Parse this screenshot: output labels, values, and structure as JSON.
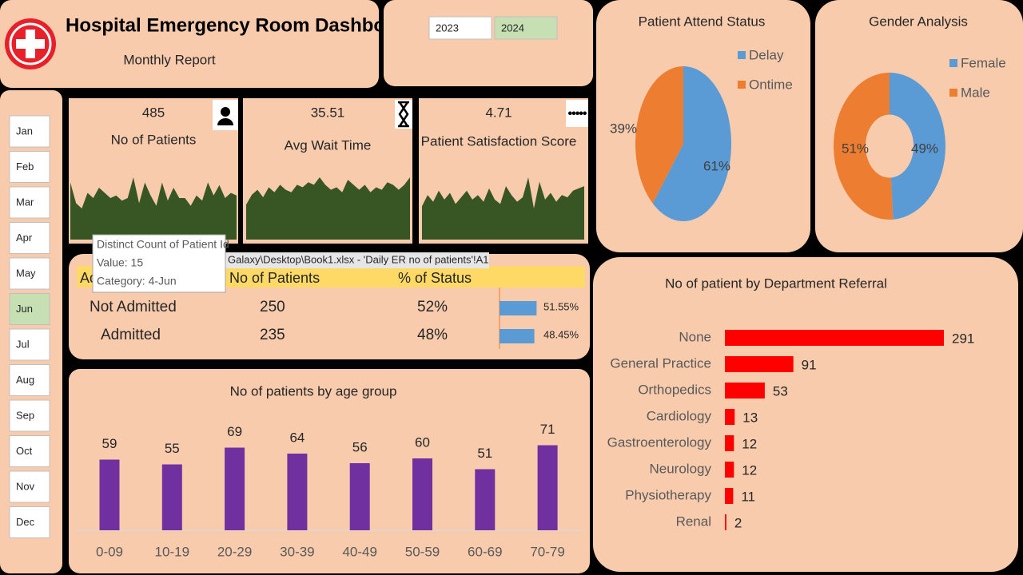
{
  "header": {
    "title": "Hospital Emergency Room Dashboard",
    "subtitle": "Monthly Report"
  },
  "years": [
    {
      "label": "2023",
      "selected": false
    },
    {
      "label": "2024",
      "selected": true
    }
  ],
  "months": [
    "Jan",
    "Feb",
    "Mar",
    "Apr",
    "May",
    "Jun",
    "Jul",
    "Aug",
    "Sep",
    "Oct",
    "Nov",
    "Dec"
  ],
  "selected_month": "Jun",
  "kpis": [
    {
      "value": "485",
      "label": "No of Patients"
    },
    {
      "value": "35.51",
      "label": "Avg Wait Time"
    },
    {
      "value": "4.71",
      "label": "Patient Satisfaction Score"
    }
  ],
  "status_table": {
    "columns": [
      "Admission Status",
      "No of Patients",
      "% of Status"
    ],
    "rows": [
      [
        "Not Admitted",
        "250",
        "52%"
      ],
      [
        "Admitted",
        "235",
        "48%"
      ]
    ],
    "bars": {
      "values": [
        51.55,
        48.45
      ],
      "value_labels": [
        "51.55%",
        "48.45%"
      ],
      "color": "#5b9bd5"
    }
  },
  "tooltip": {
    "lines": [
      "Distinct Count of Patient Id",
      "Value: 15",
      "Category: 4-Jun"
    ]
  },
  "path_bar": "Galaxy\\Desktop\\Book1.xlsx - 'Daily ER no of patients'!A1",
  "chart_data": [
    {
      "type": "area",
      "color": "#375623",
      "values": [
        22,
        14,
        12,
        18,
        16,
        20,
        18,
        16,
        17,
        15,
        16,
        24,
        14,
        22,
        17,
        13,
        22,
        15,
        20,
        16,
        16,
        13,
        17,
        15,
        22,
        17,
        21,
        16,
        18,
        17
      ]
    },
    {
      "type": "area",
      "color": "#375623",
      "values": [
        14,
        18,
        20,
        17,
        21,
        19,
        22,
        20,
        19,
        22,
        21,
        23,
        22,
        25,
        22,
        20,
        21,
        19,
        24,
        22,
        20,
        22,
        19,
        21,
        20,
        23,
        22,
        20,
        22,
        25
      ]
    },
    {
      "type": "area",
      "color": "#375623",
      "values": [
        15,
        20,
        17,
        22,
        18,
        21,
        16,
        19,
        22,
        18,
        20,
        17,
        23,
        18,
        16,
        24,
        20,
        17,
        19,
        28,
        14,
        26,
        18,
        21,
        17,
        20,
        19,
        22,
        23,
        24
      ]
    },
    {
      "type": "pie",
      "title": "Patient Attend Status",
      "categories": [
        "Delay",
        "Ontime"
      ],
      "values": [
        61,
        39
      ],
      "value_labels": [
        "61%",
        "39%"
      ],
      "colors": [
        "#5b9bd5",
        "#ed7d31"
      ],
      "legend": "right"
    },
    {
      "type": "donut",
      "title": "Gender Analysis",
      "categories": [
        "Female",
        "Male"
      ],
      "values": [
        49,
        51
      ],
      "value_labels": [
        "49%",
        "51%"
      ],
      "colors": [
        "#5b9bd5",
        "#ed7d31"
      ],
      "legend": "right"
    },
    {
      "type": "bar",
      "title": "No of patients by age group",
      "categories": [
        "0-09",
        "10-19",
        "20-29",
        "30-39",
        "40-49",
        "50-59",
        "60-69",
        "70-79"
      ],
      "values": [
        59,
        55,
        69,
        64,
        56,
        60,
        51,
        71
      ],
      "color": "#7030a0"
    },
    {
      "type": "hbar",
      "title": "No of patient by Department Referral",
      "categories": [
        "None",
        "General Practice",
        "Orthopedics",
        "Cardiology",
        "Gastroenterology",
        "Neurology",
        "Physiotherapy",
        "Renal"
      ],
      "values": [
        291,
        91,
        53,
        13,
        12,
        12,
        11,
        2
      ],
      "color": "#ff0000"
    }
  ]
}
